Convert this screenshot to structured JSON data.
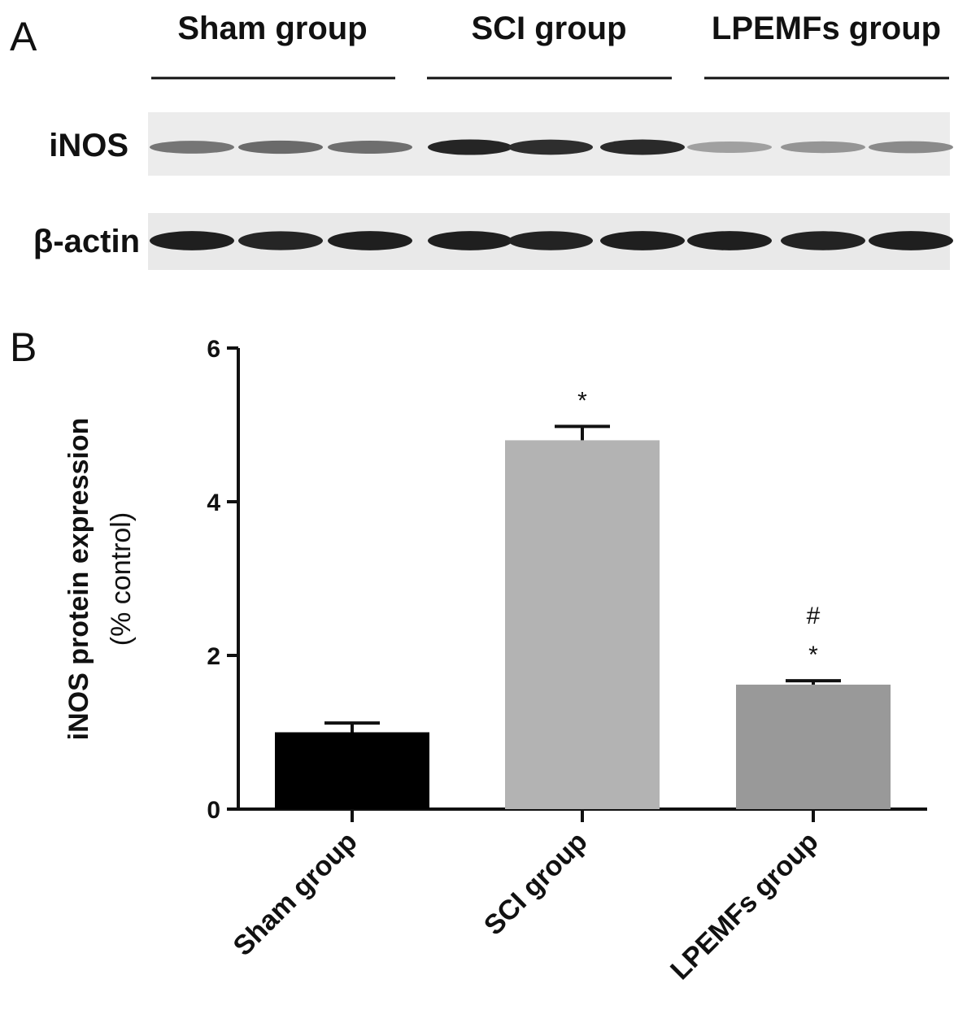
{
  "panel_a": {
    "letter": "A",
    "groups": [
      "Sham group",
      "SCI group",
      "LPEMFs group"
    ],
    "rows": [
      {
        "label": "iNOS",
        "intensity": [
          0.55,
          0.6,
          0.58,
          0.92,
          0.88,
          0.9,
          0.35,
          0.4,
          0.45
        ]
      },
      {
        "label": "β-actin",
        "intensity": [
          0.95,
          0.92,
          0.95,
          0.95,
          0.93,
          0.95,
          0.95,
          0.93,
          0.95
        ]
      }
    ]
  },
  "panel_b": {
    "letter": "B"
  },
  "chart_data": {
    "type": "bar",
    "categories": [
      "Sham group",
      "SCI group",
      "LPEMFs group"
    ],
    "values": [
      1.0,
      4.8,
      1.62
    ],
    "errors": [
      0.12,
      0.18,
      0.05
    ],
    "significance": [
      [],
      [
        "*"
      ],
      [
        "#",
        "*"
      ]
    ],
    "colors": [
      "#000000",
      "#b3b3b3",
      "#999999"
    ],
    "ylabel": "iNOS protein expression",
    "ylabel_sub": "(% control)",
    "ylim": [
      0,
      6
    ],
    "yticks": [
      0,
      2,
      4,
      6
    ],
    "grid": false
  }
}
